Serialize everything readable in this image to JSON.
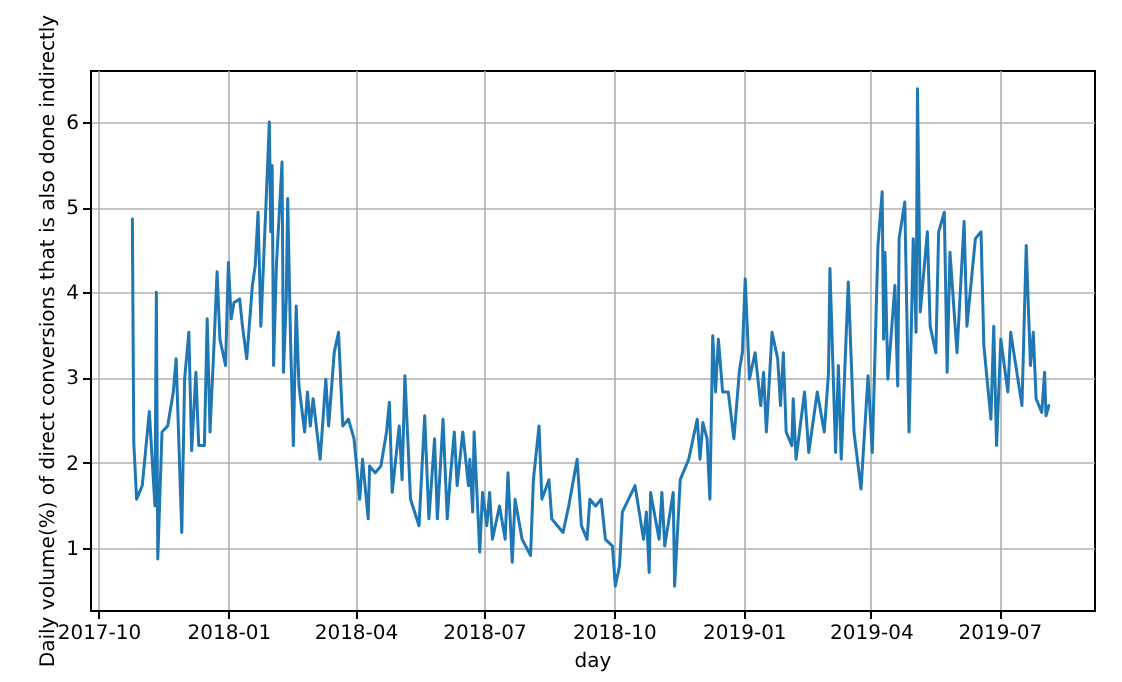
{
  "chart_data": {
    "type": "line",
    "xlabel": "day",
    "ylabel": "Daily volume(%) of direct conversions that is also done indirectly",
    "xlim": [
      "2017-09-25",
      "2019-09-06"
    ],
    "xticks": [
      "2017-10",
      "2018-01",
      "2018-04",
      "2018-07",
      "2018-10",
      "2019-01",
      "2019-04",
      "2019-07"
    ],
    "ylim": [
      0.27,
      6.61
    ],
    "yticks": [
      1,
      2,
      3,
      4,
      5,
      6
    ],
    "grid": true,
    "line_style": "solid",
    "series": [
      {
        "color": "#1f77b4",
        "x": [
          "2017-10-25",
          "2017-10-26",
          "2017-10-28",
          "2017-11-01",
          "2017-11-06",
          "2017-11-10",
          "2017-11-11",
          "2017-11-12",
          "2017-11-15",
          "2017-11-19",
          "2017-11-23",
          "2017-11-25",
          "2017-11-29",
          "2017-12-01",
          "2017-12-04",
          "2017-12-06",
          "2017-12-09",
          "2017-12-11",
          "2017-12-15",
          "2017-12-17",
          "2017-12-19",
          "2017-12-22",
          "2017-12-24",
          "2017-12-26",
          "2017-12-30",
          "2018-01-01",
          "2018-01-03",
          "2018-01-05",
          "2018-01-09",
          "2018-01-11",
          "2018-01-14",
          "2018-01-18",
          "2018-01-20",
          "2018-01-22",
          "2018-01-24",
          "2018-01-28",
          "2018-01-30",
          "2018-01-31",
          "2018-02-01",
          "2018-02-02",
          "2018-02-04",
          "2018-02-08",
          "2018-02-09",
          "2018-02-11",
          "2018-02-12",
          "2018-02-14",
          "2018-02-16",
          "2018-02-18",
          "2018-02-20",
          "2018-02-24",
          "2018-02-26",
          "2018-02-28",
          "2018-03-02",
          "2018-03-07",
          "2018-03-11",
          "2018-03-13",
          "2018-03-17",
          "2018-03-20",
          "2018-03-23",
          "2018-03-27",
          "2018-03-31",
          "2018-04-04",
          "2018-04-06",
          "2018-04-10",
          "2018-04-11",
          "2018-04-15",
          "2018-04-19",
          "2018-04-23",
          "2018-04-25",
          "2018-04-27",
          "2018-05-02",
          "2018-05-04",
          "2018-05-06",
          "2018-05-10",
          "2018-05-16",
          "2018-05-20",
          "2018-05-23",
          "2018-05-27",
          "2018-05-29",
          "2018-06-02",
          "2018-06-05",
          "2018-06-07",
          "2018-06-10",
          "2018-06-12",
          "2018-06-16",
          "2018-06-20",
          "2018-06-21",
          "2018-06-23",
          "2018-06-24",
          "2018-06-28",
          "2018-06-30",
          "2018-07-03",
          "2018-07-05",
          "2018-07-07",
          "2018-07-12",
          "2018-07-16",
          "2018-07-18",
          "2018-07-21",
          "2018-07-23",
          "2018-07-28",
          "2018-08-03",
          "2018-08-05",
          "2018-08-09",
          "2018-08-11",
          "2018-08-16",
          "2018-08-18",
          "2018-08-22",
          "2018-08-26",
          "2018-08-30",
          "2018-09-05",
          "2018-09-08",
          "2018-09-12",
          "2018-09-14",
          "2018-09-18",
          "2018-09-22",
          "2018-09-25",
          "2018-09-30",
          "2018-10-02",
          "2018-10-05",
          "2018-10-07",
          "2018-10-16",
          "2018-10-22",
          "2018-10-24",
          "2018-10-26",
          "2018-10-27",
          "2018-11-02",
          "2018-11-04",
          "2018-11-06",
          "2018-11-12",
          "2018-11-13",
          "2018-11-17",
          "2018-11-23",
          "2018-11-29",
          "2018-12-01",
          "2018-12-03",
          "2018-12-06",
          "2018-12-08",
          "2018-12-10",
          "2018-12-12",
          "2018-12-14",
          "2018-12-17",
          "2018-12-21",
          "2018-12-25",
          "2018-12-29",
          "2018-12-31",
          "2019-01-02",
          "2019-01-05",
          "2019-01-09",
          "2019-01-13",
          "2019-01-15",
          "2019-01-17",
          "2019-01-21",
          "2019-01-25",
          "2019-01-27",
          "2019-01-29",
          "2019-01-31",
          "2019-02-04",
          "2019-02-05",
          "2019-02-07",
          "2019-02-13",
          "2019-02-16",
          "2019-02-22",
          "2019-02-27",
          "2019-03-02",
          "2019-03-03",
          "2019-03-07",
          "2019-03-09",
          "2019-03-11",
          "2019-03-16",
          "2019-03-20",
          "2019-03-25",
          "2019-03-30",
          "2019-04-02",
          "2019-04-06",
          "2019-04-09",
          "2019-04-10",
          "2019-04-11",
          "2019-04-13",
          "2019-04-18",
          "2019-04-20",
          "2019-04-21",
          "2019-04-25",
          "2019-04-28",
          "2019-05-01",
          "2019-05-03",
          "2019-05-04",
          "2019-05-06",
          "2019-05-11",
          "2019-05-13",
          "2019-05-17",
          "2019-05-19",
          "2019-05-23",
          "2019-05-25",
          "2019-05-27",
          "2019-06-01",
          "2019-06-06",
          "2019-06-08",
          "2019-06-14",
          "2019-06-18",
          "2019-06-20",
          "2019-06-25",
          "2019-06-27",
          "2019-06-29",
          "2019-07-02",
          "2019-07-07",
          "2019-07-09",
          "2019-07-17",
          "2019-07-20",
          "2019-07-23",
          "2019-07-25",
          "2019-07-27",
          "2019-07-31",
          "2019-08-02",
          "2019-08-03",
          "2019-08-05"
        ],
        "values": [
          4.86,
          2.24,
          1.57,
          1.73,
          2.6,
          1.49,
          4.0,
          0.87,
          2.36,
          2.43,
          2.83,
          3.22,
          1.18,
          2.98,
          3.53,
          2.14,
          3.06,
          2.2,
          2.2,
          3.69,
          2.36,
          3.45,
          4.24,
          3.45,
          3.14,
          4.35,
          3.69,
          3.88,
          3.92,
          3.6,
          3.22,
          4.08,
          4.31,
          4.94,
          3.6,
          5.18,
          6.0,
          4.71,
          5.49,
          3.14,
          4.31,
          5.53,
          3.06,
          3.92,
          5.1,
          3.45,
          2.2,
          3.84,
          2.9,
          2.36,
          2.83,
          2.43,
          2.75,
          2.04,
          2.98,
          2.43,
          3.3,
          3.53,
          2.43,
          2.51,
          2.28,
          1.57,
          2.04,
          1.34,
          1.96,
          1.88,
          1.96,
          2.36,
          2.71,
          1.65,
          2.43,
          1.8,
          3.02,
          1.57,
          1.26,
          2.55,
          1.34,
          2.28,
          1.34,
          2.51,
          1.34,
          1.8,
          2.36,
          1.73,
          2.36,
          1.73,
          2.04,
          1.42,
          2.36,
          0.95,
          1.65,
          1.26,
          1.65,
          1.1,
          1.49,
          1.1,
          1.88,
          0.83,
          1.57,
          1.1,
          0.91,
          1.8,
          2.43,
          1.57,
          1.8,
          1.34,
          1.26,
          1.18,
          1.49,
          2.04,
          1.26,
          1.1,
          1.57,
          1.49,
          1.57,
          1.1,
          1.02,
          0.55,
          0.79,
          1.42,
          1.73,
          1.1,
          1.42,
          0.71,
          1.65,
          1.1,
          1.65,
          1.02,
          1.65,
          0.55,
          1.8,
          2.04,
          2.51,
          2.04,
          2.47,
          2.28,
          1.57,
          3.49,
          2.83,
          3.45,
          2.83,
          2.83,
          2.28,
          3.1,
          3.29,
          4.16,
          2.98,
          3.29,
          2.67,
          3.06,
          2.36,
          3.53,
          3.22,
          2.67,
          3.29,
          2.36,
          2.2,
          2.75,
          2.04,
          2.83,
          2.12,
          2.83,
          2.36,
          3.06,
          4.28,
          2.12,
          3.14,
          2.04,
          4.12,
          2.36,
          1.69,
          3.02,
          2.12,
          4.55,
          5.18,
          3.45,
          4.47,
          2.98,
          4.08,
          2.9,
          4.63,
          5.06,
          2.36,
          4.63,
          3.53,
          6.39,
          3.77,
          4.71,
          3.6,
          3.29,
          4.71,
          4.94,
          3.06,
          4.47,
          3.29,
          4.83,
          3.6,
          4.63,
          4.71,
          3.37,
          2.51,
          3.6,
          2.2,
          3.45,
          2.83,
          3.53,
          2.67,
          4.55,
          3.14,
          3.53,
          2.75,
          2.59,
          3.06,
          2.55,
          2.67
        ]
      }
    ]
  }
}
